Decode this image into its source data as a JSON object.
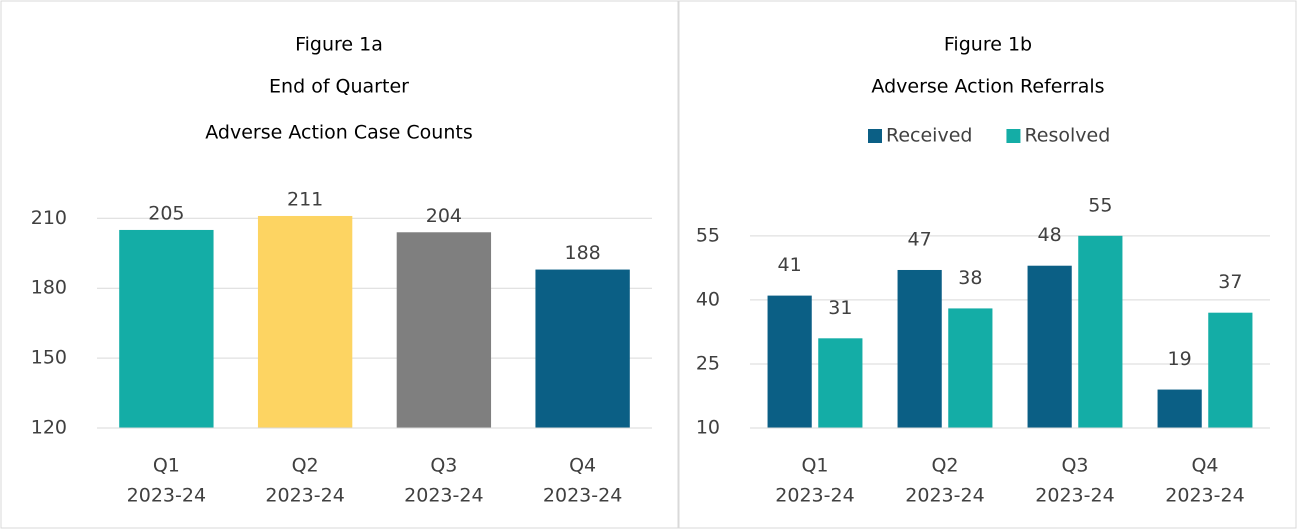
{
  "chart_data": [
    {
      "type": "bar",
      "figure": "Figure 1a",
      "title": [
        "End of Quarter",
        "Adverse Action Case Counts"
      ],
      "categories": [
        [
          "Q1",
          "2023-24"
        ],
        [
          "Q2",
          "2023-24"
        ],
        [
          "Q3",
          "2023-24"
        ],
        [
          "Q4",
          "2023-24"
        ]
      ],
      "values": [
        205,
        211,
        204,
        188
      ],
      "colors": [
        "#14ada6",
        "#fdd462",
        "#7f7f7f",
        "#0b5f85"
      ],
      "ylim": [
        120,
        220
      ],
      "yticks": [
        120,
        150,
        180,
        210
      ],
      "grid": true
    },
    {
      "type": "bar",
      "figure": "Figure 1b",
      "title": [
        "Adverse Action Referrals"
      ],
      "categories": [
        [
          "Q1",
          "2023-24"
        ],
        [
          "Q2",
          "2023-24"
        ],
        [
          "Q3",
          "2023-24"
        ],
        [
          "Q4",
          "2023-24"
        ]
      ],
      "series": [
        {
          "name": "Received",
          "color": "#0b5f85",
          "values": [
            41,
            47,
            48,
            19
          ]
        },
        {
          "name": "Resolved",
          "color": "#14ada6",
          "values": [
            31,
            38,
            55,
            37
          ]
        }
      ],
      "ylim": [
        10,
        58
      ],
      "yticks": [
        10,
        25,
        40,
        55
      ],
      "grid": true,
      "legend": "top"
    }
  ]
}
